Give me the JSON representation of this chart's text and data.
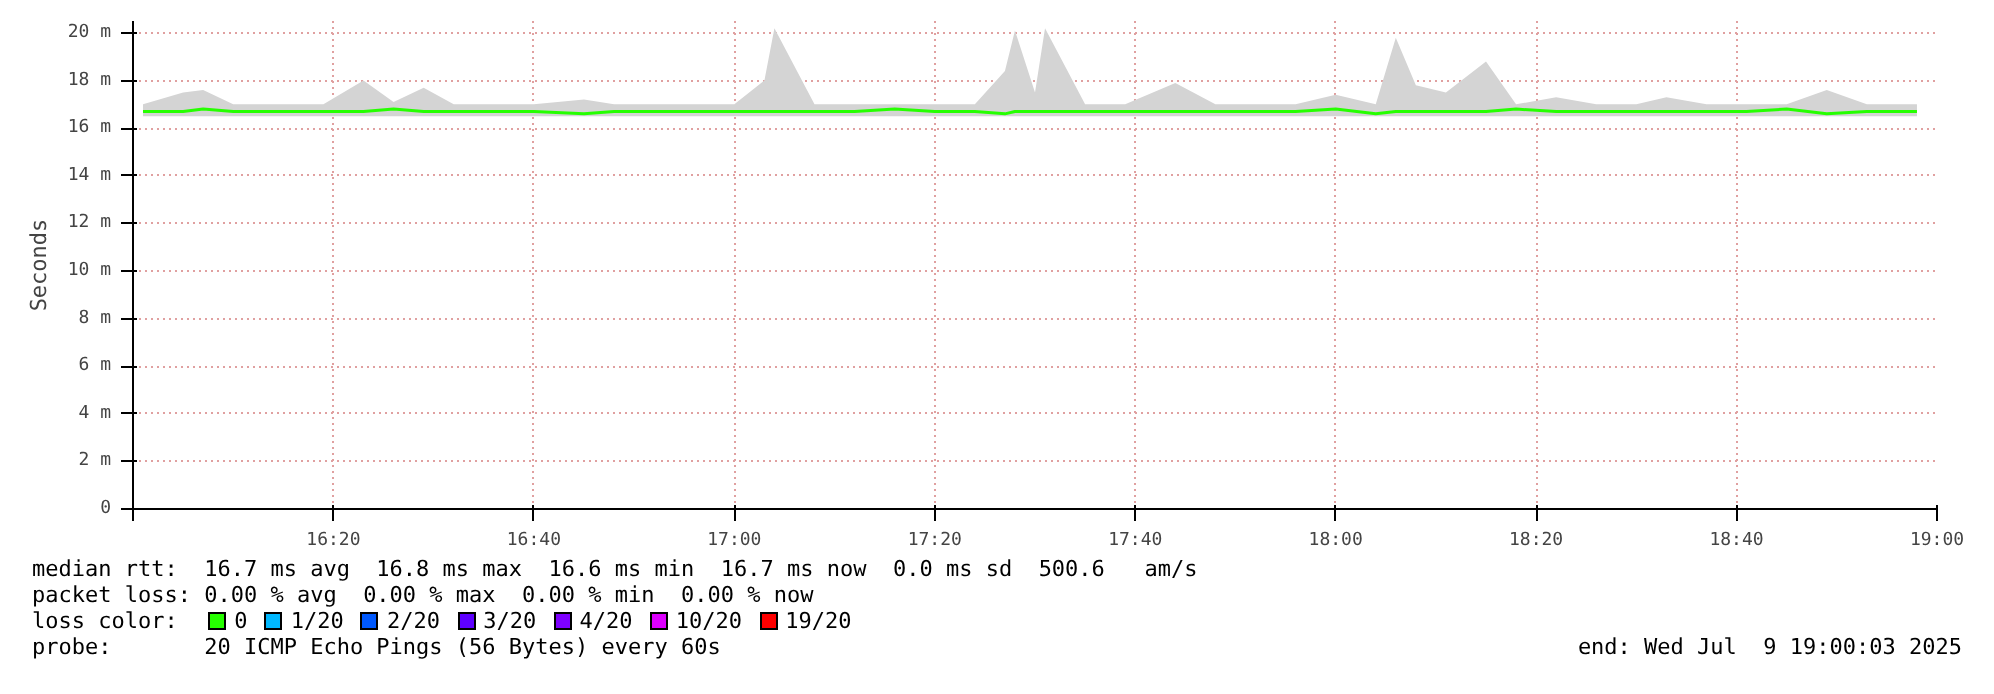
{
  "chart_data": {
    "type": "line",
    "ylabel": "Seconds",
    "legend_title": "loss color:",
    "legend": "bottom",
    "grid": true,
    "xlim": [
      "2025-07-09T16:00",
      "2025-07-09T19:00"
    ],
    "xticks": [
      {
        "value": "2025-07-09T16:00",
        "label": null
      },
      {
        "value": "2025-07-09T16:20",
        "label": "16:20"
      },
      {
        "value": "2025-07-09T16:40",
        "label": "16:40"
      },
      {
        "value": "2025-07-09T17:00",
        "label": "17:00"
      },
      {
        "value": "2025-07-09T17:20",
        "label": "17:20"
      },
      {
        "value": "2025-07-09T17:40",
        "label": "17:40"
      },
      {
        "value": "2025-07-09T18:00",
        "label": "18:00"
      },
      {
        "value": "2025-07-09T18:20",
        "label": "18:20"
      },
      {
        "value": "2025-07-09T18:40",
        "label": "18:40"
      },
      {
        "value": "2025-07-09T19:00",
        "label": "19:00"
      }
    ],
    "ylim": [
      0,
      20.5
    ],
    "yticks": [
      0,
      {
        "value": 2,
        "label": "2 m"
      },
      {
        "value": 4,
        "label": "4 m"
      },
      {
        "value": 6,
        "label": "6 m"
      },
      {
        "value": 8,
        "label": "8 m"
      },
      {
        "value": 10,
        "label": "10 m"
      },
      {
        "value": 12,
        "label": "12 m"
      },
      {
        "value": 14,
        "label": "14 m"
      },
      {
        "value": 16,
        "label": "16 m"
      },
      {
        "value": 18,
        "label": "18 m"
      },
      {
        "value": 20,
        "label": "20 m"
      }
    ],
    "x": [
      "2025-07-09T16:01",
      "2025-07-09T16:05",
      "2025-07-09T16:07",
      "2025-07-09T16:10",
      "2025-07-09T16:13",
      "2025-07-09T16:16",
      "2025-07-09T16:19",
      "2025-07-09T16:23",
      "2025-07-09T16:26",
      "2025-07-09T16:29",
      "2025-07-09T16:32",
      "2025-07-09T16:36",
      "2025-07-09T16:40",
      "2025-07-09T16:45",
      "2025-07-09T16:48",
      "2025-07-09T16:52",
      "2025-07-09T16:56",
      "2025-07-09T17:00",
      "2025-07-09T17:03",
      "2025-07-09T17:04",
      "2025-07-09T17:08",
      "2025-07-09T17:12",
      "2025-07-09T17:16",
      "2025-07-09T17:20",
      "2025-07-09T17:24",
      "2025-07-09T17:27",
      "2025-07-09T17:28",
      "2025-07-09T17:30",
      "2025-07-09T17:31",
      "2025-07-09T17:35",
      "2025-07-09T17:39",
      "2025-07-09T17:44",
      "2025-07-09T17:48",
      "2025-07-09T17:52",
      "2025-07-09T17:56",
      "2025-07-09T18:00",
      "2025-07-09T18:04",
      "2025-07-09T18:06",
      "2025-07-09T18:08",
      "2025-07-09T18:11",
      "2025-07-09T18:15",
      "2025-07-09T18:18",
      "2025-07-09T18:22",
      "2025-07-09T18:26",
      "2025-07-09T18:30",
      "2025-07-09T18:33",
      "2025-07-09T18:37",
      "2025-07-09T18:41",
      "2025-07-09T18:45",
      "2025-07-09T18:49",
      "2025-07-09T18:53",
      "2025-07-09T18:58"
    ],
    "series": [
      {
        "name": "0",
        "color": "#26ff00",
        "values": [
          16.7,
          16.7,
          16.8,
          16.7,
          16.7,
          16.7,
          16.7,
          16.7,
          16.8,
          16.7,
          16.7,
          16.7,
          16.7,
          16.6,
          16.7,
          16.7,
          16.7,
          16.7,
          16.7,
          16.7,
          16.7,
          16.7,
          16.8,
          16.7,
          16.7,
          16.6,
          16.7,
          16.7,
          16.7,
          16.7,
          16.7,
          16.7,
          16.7,
          16.7,
          16.7,
          16.8,
          16.6,
          16.7,
          16.7,
          16.7,
          16.7,
          16.8,
          16.7,
          16.7,
          16.7,
          16.7,
          16.7,
          16.7,
          16.8,
          16.6,
          16.7,
          16.7
        ],
        "upper": [
          17.0,
          17.5,
          17.6,
          17.0,
          17.0,
          17.0,
          17.0,
          18.0,
          17.1,
          17.7,
          17.0,
          17.0,
          17.0,
          17.2,
          17.0,
          17.0,
          17.0,
          17.0,
          18.0,
          20.2,
          17.0,
          17.0,
          17.0,
          17.0,
          17.0,
          18.4,
          20.1,
          17.5,
          20.2,
          17.0,
          17.0,
          17.9,
          17.0,
          17.0,
          17.0,
          17.4,
          17.0,
          19.8,
          17.8,
          17.5,
          18.8,
          17.0,
          17.3,
          17.0,
          17.0,
          17.3,
          17.0,
          17.0,
          17.0,
          17.6,
          17.0,
          17.0
        ],
        "lower": [
          16.5,
          16.5,
          16.5,
          16.5,
          16.5,
          16.5,
          16.5,
          16.5,
          16.5,
          16.5,
          16.5,
          16.5,
          16.5,
          16.5,
          16.5,
          16.5,
          16.5,
          16.5,
          16.5,
          16.5,
          16.5,
          16.5,
          16.5,
          16.5,
          16.5,
          16.5,
          16.5,
          16.5,
          16.5,
          16.5,
          16.5,
          16.5,
          16.5,
          16.5,
          16.5,
          16.5,
          16.5,
          16.5,
          16.5,
          16.5,
          16.5,
          16.5,
          16.5,
          16.5,
          16.5,
          16.5,
          16.5,
          16.5,
          16.5,
          16.5,
          16.5,
          16.5
        ]
      },
      {
        "name": "1/20",
        "color": "#00b8ff",
        "values": [
          null,
          null,
          null,
          null,
          null,
          null,
          null,
          null,
          null,
          null,
          null,
          null,
          null,
          null,
          null,
          null,
          null,
          null,
          null,
          null,
          null,
          null,
          null,
          null,
          null,
          null,
          null,
          null,
          null,
          null,
          null,
          null,
          null,
          null,
          null,
          null,
          null,
          null,
          null,
          null,
          null,
          null,
          null,
          null,
          null,
          null,
          null,
          null,
          null,
          null,
          null,
          null
        ]
      },
      {
        "name": "2/20",
        "color": "#0059ff",
        "values": [
          null,
          null,
          null,
          null,
          null,
          null,
          null,
          null,
          null,
          null,
          null,
          null,
          null,
          null,
          null,
          null,
          null,
          null,
          null,
          null,
          null,
          null,
          null,
          null,
          null,
          null,
          null,
          null,
          null,
          null,
          null,
          null,
          null,
          null,
          null,
          null,
          null,
          null,
          null,
          null,
          null,
          null,
          null,
          null,
          null,
          null,
          null,
          null,
          null,
          null,
          null,
          null
        ]
      },
      {
        "name": "3/20",
        "color": "#5e00ff",
        "values": [
          null,
          null,
          null,
          null,
          null,
          null,
          null,
          null,
          null,
          null,
          null,
          null,
          null,
          null,
          null,
          null,
          null,
          null,
          null,
          null,
          null,
          null,
          null,
          null,
          null,
          null,
          null,
          null,
          null,
          null,
          null,
          null,
          null,
          null,
          null,
          null,
          null,
          null,
          null,
          null,
          null,
          null,
          null,
          null,
          null,
          null,
          null,
          null,
          null,
          null,
          null,
          null
        ]
      },
      {
        "name": "4/20",
        "color": "#7e00ff",
        "values": [
          null,
          null,
          null,
          null,
          null,
          null,
          null,
          null,
          null,
          null,
          null,
          null,
          null,
          null,
          null,
          null,
          null,
          null,
          null,
          null,
          null,
          null,
          null,
          null,
          null,
          null,
          null,
          null,
          null,
          null,
          null,
          null,
          null,
          null,
          null,
          null,
          null,
          null,
          null,
          null,
          null,
          null,
          null,
          null,
          null,
          null,
          null,
          null,
          null,
          null,
          null,
          null
        ]
      },
      {
        "name": "10/20",
        "color": "#dd00ff",
        "values": [
          null,
          null,
          null,
          null,
          null,
          null,
          null,
          null,
          null,
          null,
          null,
          null,
          null,
          null,
          null,
          null,
          null,
          null,
          null,
          null,
          null,
          null,
          null,
          null,
          null,
          null,
          null,
          null,
          null,
          null,
          null,
          null,
          null,
          null,
          null,
          null,
          null,
          null,
          null,
          null,
          null,
          null,
          null,
          null,
          null,
          null,
          null,
          null,
          null,
          null,
          null,
          null
        ]
      },
      {
        "name": "19/20",
        "color": "#ff0000",
        "values": [
          null,
          null,
          null,
          null,
          null,
          null,
          null,
          null,
          null,
          null,
          null,
          null,
          null,
          null,
          null,
          null,
          null,
          null,
          null,
          null,
          null,
          null,
          null,
          null,
          null,
          null,
          null,
          null,
          null,
          null,
          null,
          null,
          null,
          null,
          null,
          null,
          null,
          null,
          null,
          null,
          null,
          null,
          null,
          null,
          null,
          null,
          null,
          null,
          null,
          null,
          null,
          null
        ]
      }
    ],
    "annotations": [
      "median rtt:  16.7 ms avg  16.8 ms max  16.6 ms min  16.7 ms now  0.0 ms sd  500.6   am/s",
      "packet loss: 0.00 % avg  0.00 % max  0.00 % min  0.00 % now",
      "probe:       20 ICMP Echo Pings (56 Bytes) every 60s",
      "end: Wed Jul  9 19:00:03 2025"
    ]
  }
}
